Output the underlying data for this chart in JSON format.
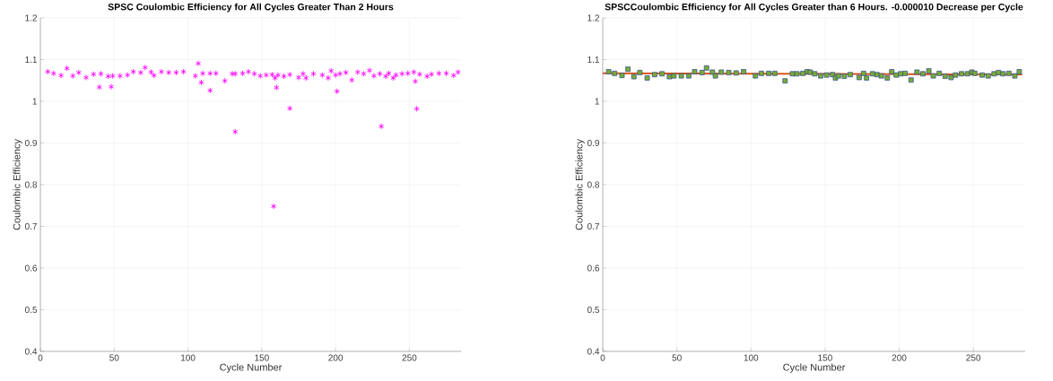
{
  "chart_data": [
    {
      "type": "scatter",
      "title": "SPSC Coulombic Efficiency for All Cycles Greater Than 2 Hours",
      "xlabel": "Cycle Number",
      "ylabel": "Coulombic Efficiency",
      "xlim": [
        0,
        285
      ],
      "ylim": [
        0.4,
        1.2
      ],
      "xticks": [
        0,
        50,
        100,
        150,
        200,
        250
      ],
      "yticks": [
        0.4,
        0.5,
        0.6,
        0.7,
        0.8,
        0.9,
        1,
        1.1,
        1.2
      ],
      "grid": true,
      "marker": "cross",
      "series": [
        {
          "color": "#ff00ff",
          "x": [
            5,
            9,
            14,
            18,
            22,
            26,
            31,
            36,
            40,
            41,
            46,
            48,
            49,
            54,
            59,
            63,
            68,
            71,
            75,
            77,
            82,
            87,
            92,
            97,
            105,
            107,
            109,
            110,
            115,
            115,
            119,
            125,
            130,
            132,
            132,
            137,
            141,
            145,
            149,
            153,
            157,
            158,
            159,
            160,
            161,
            165,
            169,
            169,
            175,
            178,
            180,
            185,
            191,
            195,
            197,
            200,
            201,
            203,
            207,
            211,
            215,
            219,
            223,
            226,
            230,
            231,
            234,
            236,
            239,
            241,
            245,
            249,
            253,
            254,
            255,
            257,
            262,
            265,
            270,
            275,
            280,
            283
          ],
          "values": [
            1.071,
            1.067,
            1.062,
            1.079,
            1.061,
            1.069,
            1.057,
            1.065,
            1.034,
            1.066,
            1.06,
            1.035,
            1.061,
            1.061,
            1.063,
            1.071,
            1.069,
            1.081,
            1.07,
            1.062,
            1.071,
            1.069,
            1.069,
            1.071,
            1.061,
            1.091,
            1.045,
            1.067,
            1.026,
            1.067,
            1.067,
            1.049,
            1.066,
            0.927,
            1.066,
            1.067,
            1.071,
            1.066,
            1.061,
            1.063,
            1.064,
            0.748,
            1.056,
            1.033,
            1.063,
            1.06,
            0.983,
            1.064,
            1.057,
            1.066,
            1.056,
            1.066,
            1.063,
            1.056,
            1.073,
            1.063,
            1.024,
            1.066,
            1.069,
            1.051,
            1.07,
            1.066,
            1.074,
            1.061,
            1.066,
            0.94,
            1.06,
            1.067,
            1.056,
            1.063,
            1.066,
            1.067,
            1.07,
            1.048,
            0.982,
            1.065,
            1.06,
            1.065,
            1.067,
            1.067,
            1.062,
            1.07
          ]
        }
      ]
    },
    {
      "type": "scatter",
      "title": "SPSCCoulombic Efficiency for All Cycles Greater than 6 Hours. -0.000010 Decrease per Cycle",
      "xlabel": "Cycle Number",
      "ylabel": "Coulombic Efficiency",
      "xlim": [
        0,
        285
      ],
      "ylim": [
        0.4,
        1.2
      ],
      "xticks": [
        0,
        50,
        100,
        150,
        200,
        250
      ],
      "yticks": [
        0.4,
        0.5,
        0.6,
        0.7,
        0.8,
        0.9,
        1,
        1.1,
        1.2
      ],
      "grid": true,
      "marker": "square",
      "series": [
        {
          "color": "#77ac30",
          "x": [
            4,
            8,
            13,
            17,
            21,
            25,
            30,
            35,
            40,
            45,
            48,
            53,
            58,
            62,
            67,
            70,
            74,
            76,
            80,
            85,
            90,
            95,
            103,
            107,
            112,
            116,
            123,
            128,
            131,
            135,
            138,
            140,
            143,
            147,
            151,
            155,
            157,
            159,
            163,
            167,
            173,
            176,
            178,
            182,
            185,
            188,
            192,
            195,
            198,
            201,
            204,
            208,
            212,
            216,
            220,
            223,
            227,
            231,
            235,
            238,
            242,
            246,
            249,
            251,
            256,
            260,
            264,
            267,
            270,
            274,
            278,
            281
          ],
          "values": [
            1.071,
            1.067,
            1.062,
            1.077,
            1.059,
            1.069,
            1.056,
            1.064,
            1.066,
            1.059,
            1.061,
            1.061,
            1.061,
            1.071,
            1.069,
            1.08,
            1.07,
            1.061,
            1.07,
            1.069,
            1.068,
            1.071,
            1.061,
            1.067,
            1.067,
            1.067,
            1.049,
            1.066,
            1.066,
            1.067,
            1.071,
            1.07,
            1.066,
            1.061,
            1.063,
            1.064,
            1.056,
            1.061,
            1.06,
            1.064,
            1.057,
            1.067,
            1.056,
            1.066,
            1.064,
            1.061,
            1.056,
            1.071,
            1.063,
            1.066,
            1.067,
            1.051,
            1.07,
            1.066,
            1.073,
            1.061,
            1.067,
            1.06,
            1.057,
            1.063,
            1.066,
            1.066,
            1.07,
            1.067,
            1.063,
            1.061,
            1.066,
            1.069,
            1.066,
            1.067,
            1.061,
            1.071
          ]
        },
        {
          "type": "line",
          "marker": "none",
          "color": "#d95319",
          "x": [
            0,
            283
          ],
          "values": [
            1.067,
            1.064
          ]
        }
      ]
    }
  ]
}
